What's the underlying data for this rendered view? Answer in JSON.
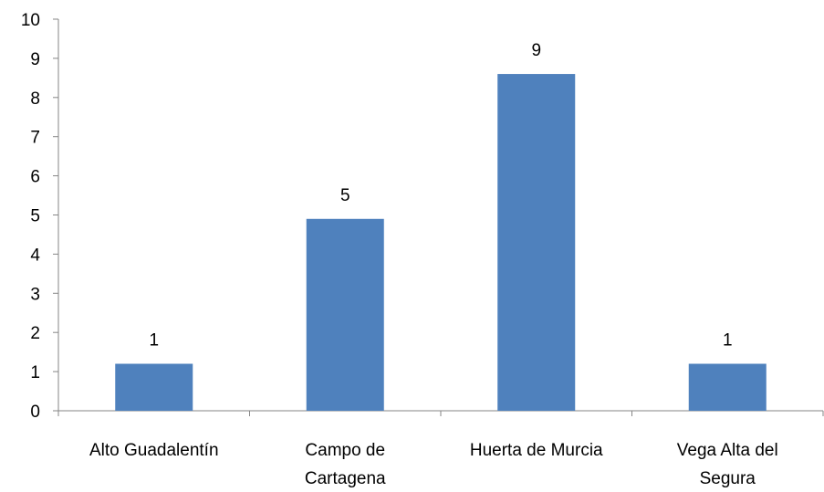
{
  "chart_data": {
    "type": "bar",
    "title": "",
    "xlabel": "",
    "ylabel": "",
    "categories": [
      [
        "Alto Guadalentín"
      ],
      [
        "Campo de",
        "Cartagena"
      ],
      [
        "Huerta de Murcia"
      ],
      [
        "Vega Alta del",
        "Segura"
      ]
    ],
    "values": [
      1.2,
      4.9,
      8.6,
      1.2
    ],
    "data_labels": [
      "1",
      "5",
      "9",
      "1"
    ],
    "ylim": [
      0,
      10
    ],
    "yticks": [
      "0",
      "1",
      "2",
      "3",
      "4",
      "5",
      "6",
      "7",
      "8",
      "9",
      "10"
    ],
    "grid": false,
    "legend": "none",
    "colors": {
      "bar": "#4f81bd",
      "axis": "#868686"
    }
  }
}
